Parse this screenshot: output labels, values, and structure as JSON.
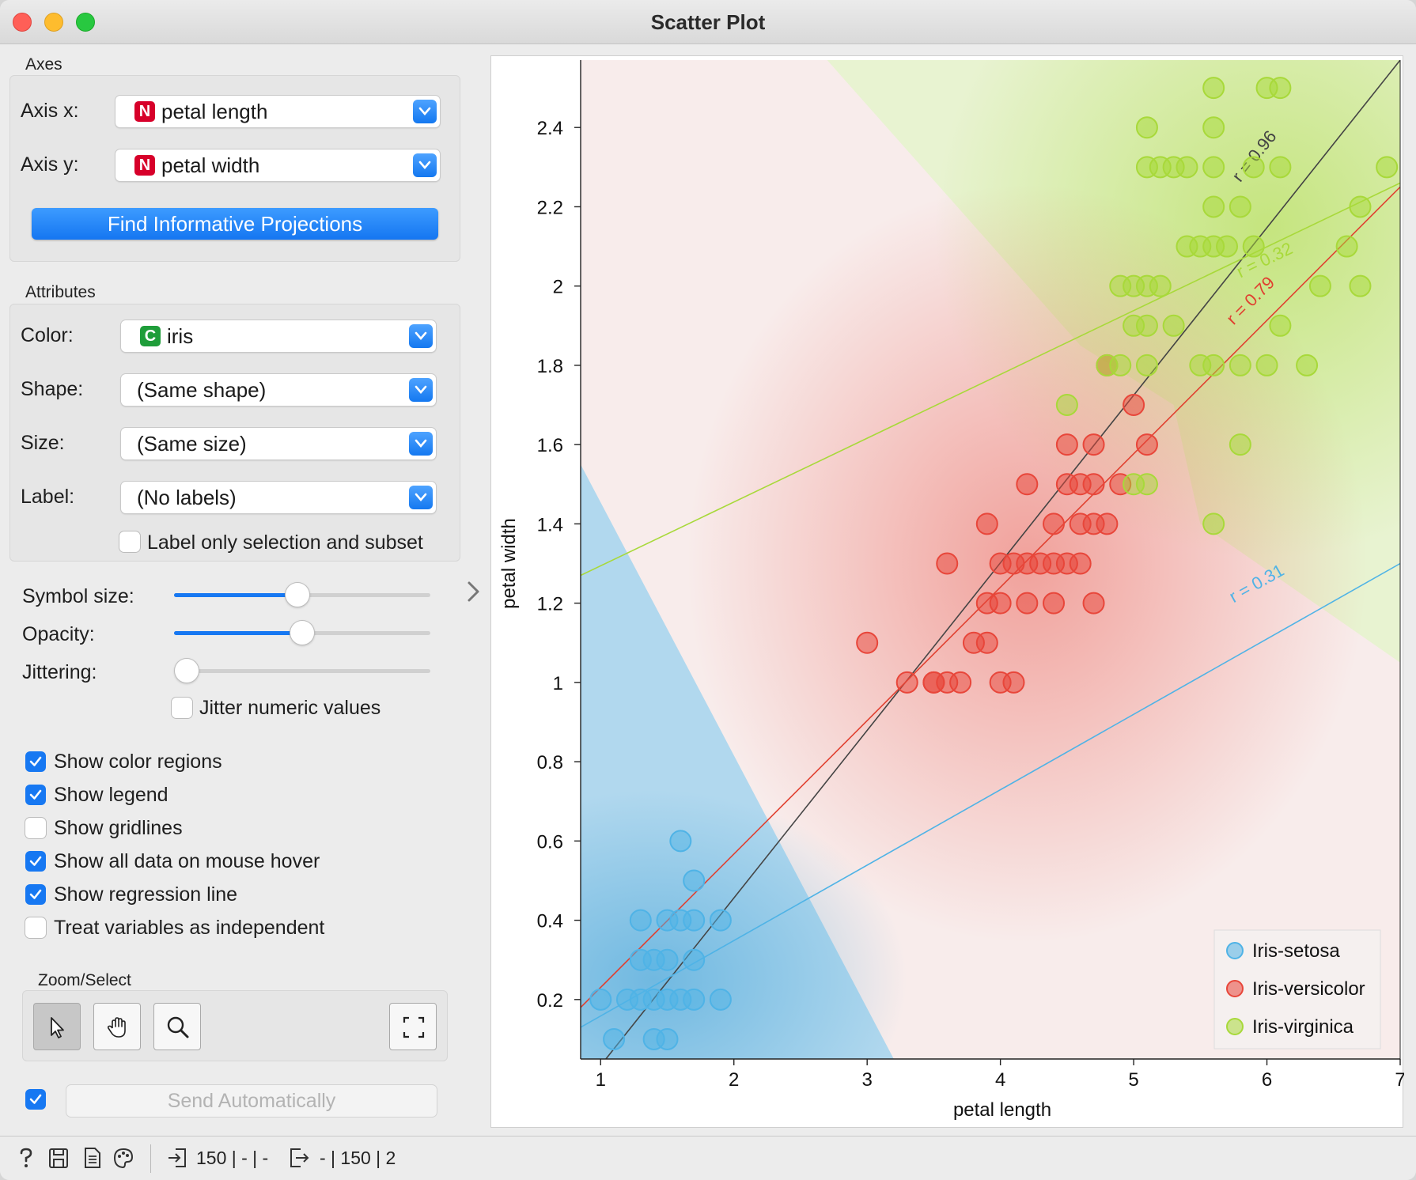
{
  "window": {
    "title": "Scatter Plot"
  },
  "axes_group": {
    "label": "Axes",
    "axis_x": {
      "label": "Axis x:",
      "value": "petal length",
      "type_badge": "N"
    },
    "axis_y": {
      "label": "Axis y:",
      "value": "petal width",
      "type_badge": "N"
    },
    "find_button": "Find Informative Projections"
  },
  "attributes_group": {
    "label": "Attributes",
    "color": {
      "label": "Color:",
      "value": "iris",
      "type_badge": "C"
    },
    "shape": {
      "label": "Shape:",
      "value": "(Same shape)"
    },
    "size": {
      "label": "Size:",
      "value": "(Same size)"
    },
    "label_row": {
      "label": "Label:",
      "value": "(No labels)"
    },
    "label_only": {
      "label": "Label only selection and subset",
      "checked": false
    }
  },
  "sliders": {
    "symbol_size": {
      "label": "Symbol size:",
      "level": 0.48
    },
    "opacity": {
      "label": "Opacity:",
      "level": 0.5
    },
    "jittering": {
      "label": "Jittering:",
      "level": 0.05
    },
    "jitter_numeric": {
      "label": "Jitter numeric values",
      "checked": false
    }
  },
  "options": [
    {
      "label": "Show color regions",
      "checked": true
    },
    {
      "label": "Show legend",
      "checked": true
    },
    {
      "label": "Show gridlines",
      "checked": false
    },
    {
      "label": "Show all data on mouse hover",
      "checked": true
    },
    {
      "label": "Show regression line",
      "checked": true
    },
    {
      "label": "Treat variables as independent",
      "checked": false
    }
  ],
  "zoom_select": {
    "label": "Zoom/Select",
    "tools": [
      "pointer-icon",
      "hand-pan-icon",
      "zoom-icon",
      "fit-view-icon"
    ],
    "active": "pointer-icon"
  },
  "send": {
    "label": "Send Automatically",
    "checked": true
  },
  "status": {
    "input": "150 | - | -",
    "output": "- | 150 | 2"
  },
  "colors": {
    "setosa": "#4fb3e6",
    "versicolor": "#e8463a",
    "virginica": "#a8d93a",
    "accent": "#1778f2"
  },
  "chart_data": {
    "type": "scatter",
    "xlabel": "petal length",
    "ylabel": "petal width",
    "xlim": [
      0.85,
      7.0
    ],
    "ylim": [
      0.05,
      2.57
    ],
    "x_ticks": [
      1,
      2,
      3,
      4,
      5,
      6,
      7
    ],
    "y_ticks": [
      0.2,
      0.4,
      0.6,
      0.8,
      1,
      1.2,
      1.4,
      1.6,
      1.8,
      2,
      2.2,
      2.4
    ],
    "y_tick_labels": [
      "0.2",
      "0.4",
      "0.6",
      "0.8",
      "1",
      "1.2",
      "1.4",
      "1.6",
      "1.8",
      "2",
      "2.2",
      "2.4"
    ],
    "grid": false,
    "legend_position": "bottom-right",
    "series": [
      {
        "name": "Iris-setosa",
        "color": "#4fb3e6",
        "points": [
          [
            1.0,
            0.2
          ],
          [
            1.2,
            0.2
          ],
          [
            1.3,
            0.2
          ],
          [
            1.4,
            0.2
          ],
          [
            1.5,
            0.2
          ],
          [
            1.6,
            0.2
          ],
          [
            1.7,
            0.2
          ],
          [
            1.9,
            0.2
          ],
          [
            1.1,
            0.1
          ],
          [
            1.4,
            0.1
          ],
          [
            1.5,
            0.1
          ],
          [
            1.3,
            0.3
          ],
          [
            1.4,
            0.3
          ],
          [
            1.5,
            0.3
          ],
          [
            1.7,
            0.3
          ],
          [
            1.3,
            0.4
          ],
          [
            1.5,
            0.4
          ],
          [
            1.6,
            0.4
          ],
          [
            1.7,
            0.4
          ],
          [
            1.9,
            0.4
          ],
          [
            1.7,
            0.5
          ],
          [
            1.6,
            0.6
          ]
        ]
      },
      {
        "name": "Iris-versicolor",
        "color": "#e8463a",
        "points": [
          [
            3.0,
            1.1
          ],
          [
            3.3,
            1.0
          ],
          [
            3.5,
            1.0
          ],
          [
            3.6,
            1.0
          ],
          [
            3.5,
            1.0
          ],
          [
            3.7,
            1.0
          ],
          [
            4.0,
            1.0
          ],
          [
            4.1,
            1.0
          ],
          [
            3.8,
            1.1
          ],
          [
            3.9,
            1.1
          ],
          [
            3.9,
            1.2
          ],
          [
            4.0,
            1.2
          ],
          [
            4.2,
            1.2
          ],
          [
            4.4,
            1.2
          ],
          [
            4.7,
            1.2
          ],
          [
            3.6,
            1.3
          ],
          [
            4.0,
            1.3
          ],
          [
            4.1,
            1.3
          ],
          [
            4.2,
            1.3
          ],
          [
            4.3,
            1.3
          ],
          [
            4.4,
            1.3
          ],
          [
            4.5,
            1.3
          ],
          [
            4.6,
            1.3
          ],
          [
            3.9,
            1.4
          ],
          [
            4.4,
            1.4
          ],
          [
            4.6,
            1.4
          ],
          [
            4.7,
            1.4
          ],
          [
            4.8,
            1.4
          ],
          [
            4.2,
            1.5
          ],
          [
            4.5,
            1.5
          ],
          [
            4.6,
            1.5
          ],
          [
            4.7,
            1.5
          ],
          [
            4.9,
            1.5
          ],
          [
            4.5,
            1.6
          ],
          [
            4.7,
            1.6
          ],
          [
            5.1,
            1.6
          ],
          [
            5.0,
            1.7
          ],
          [
            4.8,
            1.8
          ]
        ]
      },
      {
        "name": "Iris-virginica",
        "color": "#a8d93a",
        "points": [
          [
            4.5,
            1.7
          ],
          [
            5.0,
            1.5
          ],
          [
            5.1,
            1.5
          ],
          [
            5.6,
            1.4
          ],
          [
            5.8,
            1.6
          ],
          [
            4.8,
            1.8
          ],
          [
            4.9,
            1.8
          ],
          [
            5.1,
            1.8
          ],
          [
            5.5,
            1.8
          ],
          [
            5.6,
            1.8
          ],
          [
            5.8,
            1.8
          ],
          [
            6.0,
            1.8
          ],
          [
            6.3,
            1.8
          ],
          [
            5.0,
            1.9
          ],
          [
            5.1,
            1.9
          ],
          [
            5.3,
            1.9
          ],
          [
            6.1,
            1.9
          ],
          [
            4.9,
            2.0
          ],
          [
            5.0,
            2.0
          ],
          [
            5.1,
            2.0
          ],
          [
            5.2,
            2.0
          ],
          [
            6.4,
            2.0
          ],
          [
            6.7,
            2.0
          ],
          [
            5.4,
            2.1
          ],
          [
            5.5,
            2.1
          ],
          [
            5.6,
            2.1
          ],
          [
            5.7,
            2.1
          ],
          [
            5.9,
            2.1
          ],
          [
            6.6,
            2.1
          ],
          [
            5.6,
            2.2
          ],
          [
            5.8,
            2.2
          ],
          [
            6.7,
            2.2
          ],
          [
            5.1,
            2.3
          ],
          [
            5.2,
            2.3
          ],
          [
            5.3,
            2.3
          ],
          [
            5.4,
            2.3
          ],
          [
            5.6,
            2.3
          ],
          [
            5.9,
            2.3
          ],
          [
            6.1,
            2.3
          ],
          [
            6.9,
            2.3
          ],
          [
            5.1,
            2.4
          ],
          [
            5.6,
            2.4
          ],
          [
            5.6,
            2.5
          ],
          [
            6.0,
            2.5
          ],
          [
            6.1,
            2.5
          ]
        ]
      }
    ],
    "regression_lines": [
      {
        "label": "r = 0.96",
        "color": "#444444",
        "from": [
          0.85,
          -0.03
        ],
        "to": [
          7.0,
          2.57
        ]
      },
      {
        "label": "r = 0.79",
        "color": "#e04030",
        "from": [
          0.85,
          0.18
        ],
        "to": [
          7.0,
          2.25
        ]
      },
      {
        "label": "r = 0.32",
        "color": "#a8d93a",
        "from": [
          0.85,
          1.27
        ],
        "to": [
          7.0,
          2.26
        ]
      },
      {
        "label": "r = 0.31",
        "color": "#4fb3e6",
        "from": [
          0.85,
          0.13
        ],
        "to": [
          7.0,
          1.3
        ]
      }
    ]
  }
}
